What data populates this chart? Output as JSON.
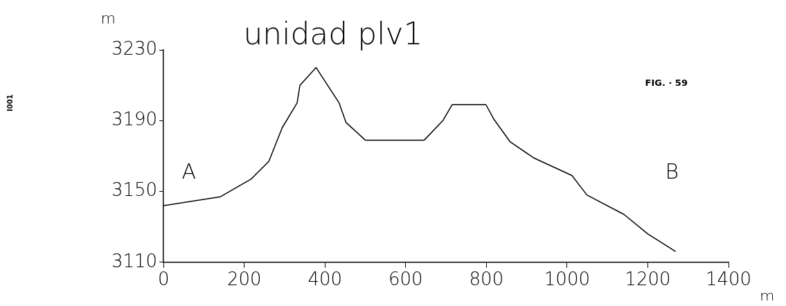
{
  "chart_data": {
    "type": "line",
    "title": "unidad plv1",
    "xlabel": "m",
    "ylabel": "m",
    "annotations": [
      "A",
      "B",
      "FIG. · 59",
      "I001"
    ],
    "x": [
      0,
      141,
      217,
      261,
      294,
      331,
      338,
      378,
      435,
      452,
      500,
      646,
      692,
      715,
      799,
      818,
      859,
      917,
      1012,
      1049,
      1141,
      1200,
      1269
    ],
    "series": [
      {
        "color": "#000000",
        "values": [
          3142,
          3147,
          3157,
          3167,
          3186,
          3200,
          3210,
          3220,
          3200,
          3189,
          3179,
          3179,
          3190,
          3199,
          3199,
          3191,
          3178,
          3169,
          3159,
          3148,
          3137,
          3126,
          3116
        ]
      }
    ],
    "xlim": [
      0,
      1400
    ],
    "xticks": [
      0,
      200,
      400,
      600,
      800,
      1000,
      1200,
      1400
    ],
    "ylim": [
      3110,
      3230
    ],
    "yticks": [
      3110,
      3150,
      3190,
      3230
    ],
    "grid": false,
    "legend": false,
    "marker": "none",
    "line_style": "solid"
  }
}
